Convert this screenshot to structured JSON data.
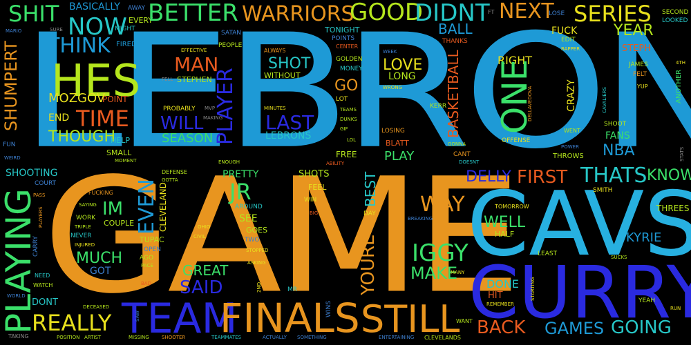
{
  "colors": {
    "background": "#000000",
    "sky": "#1e9ad6",
    "orange": "#e8951f",
    "blue": "#2a2ae0",
    "lime": "#b5e61d",
    "green": "#3be06a",
    "teal": "#27c7c7",
    "red": "#e85a1f",
    "steel": "#3d7fcf"
  },
  "words": {
    "lebron": "LEBRON",
    "game": "GAME",
    "cavs": "CAVS",
    "curry": "CURRY",
    "team": "TEAM",
    "finals": "FINALS",
    "still": "STILL",
    "playing": "PLAYING",
    "hes": "HES",
    "shit": "SHIT",
    "better": "BETTER",
    "warriors": "WARRIORS",
    "good": "GOOD",
    "didnt": "DIDNT",
    "next": "NEXT",
    "series": "SERIES",
    "now": "NOW",
    "think": "THINK",
    "time": "TIME",
    "one": "ONE",
    "shumpert": "SHUMPERT",
    "man": "MAN",
    "player": "PLAYER",
    "will": "WILL",
    "last": "LAST",
    "shot": "SHOT",
    "love": "LOVE",
    "year": "YEAR",
    "ball": "BALL",
    "basketball": "BASKETBALL",
    "right": "RIGHT",
    "mozgov": "MOZGOV",
    "though": "THOUGH",
    "season": "SEASON",
    "lebrons": "LEBRONS",
    "go": "GO",
    "nba": "NBA",
    "fans": "FANS",
    "thats": "THATS",
    "know": "KNOW",
    "first": "FIRST",
    "delly": "DELLY",
    "way": "WAY",
    "jr": "JR",
    "im": "IM",
    "even": "EVEN",
    "well": "WELL",
    "kyrie": "KYRIE",
    "iggy": "IGGY",
    "make": "MAKE",
    "much": "MUCH",
    "great": "GREAT",
    "said": "SAID",
    "really": "REALLY",
    "youre": "YOURE",
    "best": "BEST",
    "back": "BACK",
    "games": "GAMES",
    "going": "GOING",
    "done": "DONE",
    "play": "PLAY",
    "end": "END",
    "shooting": "SHOOTING",
    "crazy": "CRAZY",
    "fuck": "FUCK",
    "steph": "STEPH",
    "basically": "BASICALLY",
    "away": "AWAY",
    "every": "EVERY",
    "might": "MIGHT",
    "fired": "FIRED",
    "sure": "SURE",
    "mario": "MARIO",
    "ft": "FT",
    "lose": "LOSE",
    "second": "SECOND",
    "looked": "LOOKED",
    "satan": "SATAN",
    "people": "PEOPLE",
    "tonight": "TONIGHT",
    "points": "POINTS",
    "center": "CENTER",
    "thanks": "THANKS",
    "edit": "EDIT",
    "rapper": "RAPPER",
    "effective": "EFFECTIVE",
    "always": "ALWAYS",
    "week": "WEEK",
    "golden": "GOLDEN",
    "money": "MONEY",
    "without": "WITHOUT",
    "wrong": "WRONG",
    "long": "LONG",
    "james": "JAMES",
    "felt": "FELT",
    "yup": "YUP",
    "fourth": "4TH",
    "another": "ANOTHER",
    "fell": "FELL",
    "stephen": "STEPHEN",
    "point": "POINT",
    "probably": "PROBABLY",
    "mvp": "MVP",
    "making": "MAKING",
    "minutes": "MINUTES",
    "lot": "LOT",
    "teams": "TEAMS",
    "dunks": "DUNKS",
    "gif": "GIF",
    "lol": "LOL",
    "kerr": "KERR",
    "dellavedova": "DELLAVEDOVA",
    "cavaliers": "CAVALIERS",
    "shoot": "SHOOT",
    "went": "WENT",
    "fun": "FUN",
    "help": "HELP",
    "small": "SMALL",
    "moment": "MOMENT",
    "weird": "WEIRD",
    "losing": "LOSING",
    "blatt": "BLATT",
    "gonna": "GONNA",
    "offense": "OFFENSE",
    "power": "POWER",
    "throws": "THROWS",
    "stats": "STATS",
    "enough": "ENOUGH",
    "free": "FREE",
    "ability": "ABILITY",
    "cant": "CANT",
    "doesnt": "DOESNT",
    "defense": "DEFENSE",
    "gotta": "GOTTA",
    "pretty": "PRETTY",
    "shots": "SHOTS",
    "court": "COURT",
    "fucking": "FUCKING",
    "pass": "PASS",
    "feel": "FEEL",
    "win": "WIN",
    "big": "BIG",
    "smith": "SMITH",
    "saying": "SAYING",
    "players": "PLAYERS",
    "around": "AROUND",
    "cleveland": "CLEVELAND",
    "tomorrow": "TOMORROW",
    "threes": "THREES",
    "see": "SEE",
    "goes": "GOES",
    "day": "DAY",
    "breaking": "BREAKING",
    "work": "WORK",
    "triple": "TRIPLE",
    "couple": "COUPLE",
    "carry": "CARRY",
    "never": "NEVER",
    "injured": "INJURED",
    "ohio": "OHIO",
    "civil": "CIVIL",
    "two": "TWO",
    "half": "HALF",
    "tupac": "TUPAC",
    "open": "OPEN",
    "stopped": "STOPPED",
    "least": "LEAST",
    "ago": "AGO",
    "pace": "PACE",
    "asking": "ASKING",
    "sucks": "SUCKS",
    "got": "GOT",
    "need": "NEED",
    "many": "MANY",
    "starting": "STARTING",
    "watch": "WATCH",
    "bad": "BAD",
    "mr": "MR",
    "nd": "2ND",
    "world": "WORLD",
    "dont": "DONT",
    "deceased": "DECEASED",
    "saw": "SAW",
    "wins": "WINS",
    "hit": "HIT",
    "remember": "REMEMBER",
    "yeah": "YEAH",
    "run": "RUN",
    "want": "WANT",
    "taking": "TAKING",
    "position": "POSITION",
    "artist": "ARTIST",
    "missing": "MISSING",
    "shooter": "SHOOTER",
    "teammates": "TEAMMATES",
    "actually": "ACTUALLY",
    "something": "SOMETHING",
    "entertaining": "ENTERTAINING",
    "clevelands": "CLEVELANDS"
  }
}
